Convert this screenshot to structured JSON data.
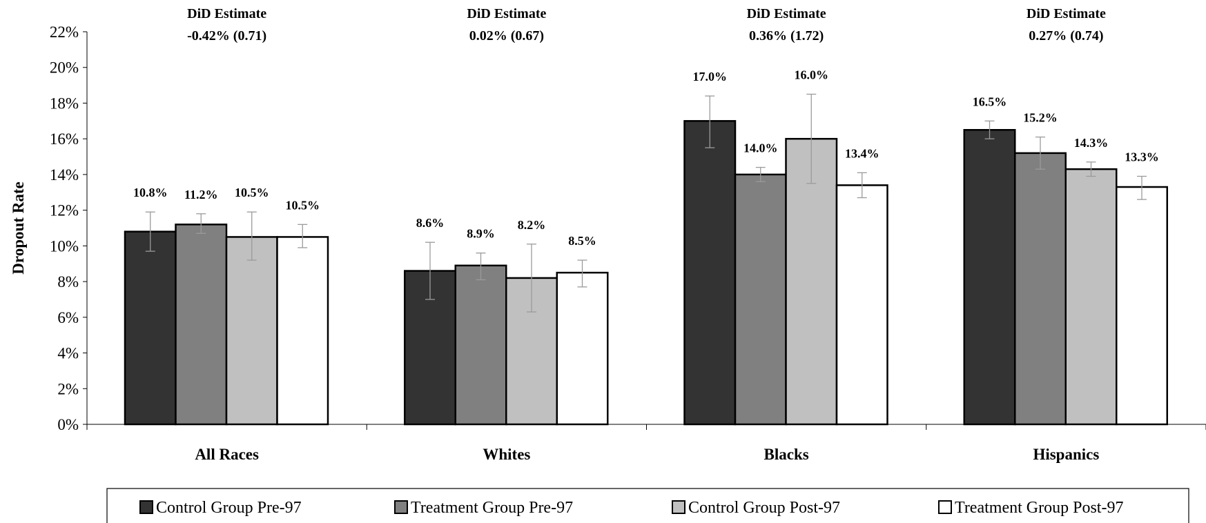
{
  "chart_data": {
    "type": "bar",
    "ylabel": "Dropout Rate",
    "xlabel": "",
    "ylim": [
      0,
      22
    ],
    "yticks": [
      "0%",
      "2%",
      "4%",
      "6%",
      "8%",
      "10%",
      "12%",
      "14%",
      "16%",
      "18%",
      "20%",
      "22%"
    ],
    "grid": false,
    "legend_position": "bottom",
    "categories": [
      "All Races",
      "Whites",
      "Blacks",
      "Hispanics"
    ],
    "series": [
      {
        "name": "Control Group Pre-97",
        "color": "#333333",
        "values": [
          10.8,
          8.6,
          17.0,
          16.5
        ],
        "labels": [
          "10.8%",
          "8.6%",
          "17.0%",
          "16.5%"
        ],
        "error_low": [
          9.7,
          7.0,
          15.5,
          16.0
        ],
        "error_high": [
          11.9,
          10.2,
          18.4,
          17.0
        ]
      },
      {
        "name": "Treatment Group Pre-97",
        "color": "#808080",
        "values": [
          11.2,
          8.9,
          14.0,
          15.2
        ],
        "labels": [
          "11.2%",
          "8.9%",
          "14.0%",
          "15.2%"
        ],
        "error_low": [
          10.7,
          8.1,
          13.6,
          14.3
        ],
        "error_high": [
          11.8,
          9.6,
          14.4,
          16.1
        ]
      },
      {
        "name": "Control Group Post-97",
        "color": "#c0c0c0",
        "values": [
          10.5,
          8.2,
          16.0,
          14.3
        ],
        "labels": [
          "10.5%",
          "8.2%",
          "16.0%",
          "14.3%"
        ],
        "error_low": [
          9.2,
          6.3,
          13.5,
          13.9
        ],
        "error_high": [
          11.9,
          10.1,
          18.5,
          14.7
        ]
      },
      {
        "name": "Treatment Group Post-97",
        "color": "#ffffff",
        "values": [
          10.5,
          8.5,
          13.4,
          13.3
        ],
        "labels": [
          "10.5%",
          "8.5%",
          "13.4%",
          "13.3%"
        ],
        "error_low": [
          9.9,
          7.7,
          12.7,
          12.6
        ],
        "error_high": [
          11.2,
          9.2,
          14.1,
          13.9
        ]
      }
    ],
    "annotations": [
      {
        "title": "DiD Estimate",
        "value": "-0.42% (0.71)"
      },
      {
        "title": "DiD Estimate",
        "value": "0.02% (0.67)"
      },
      {
        "title": "DiD Estimate",
        "value": "0.36% (1.72)"
      },
      {
        "title": "DiD Estimate",
        "value": "0.27% (0.74)"
      }
    ]
  }
}
